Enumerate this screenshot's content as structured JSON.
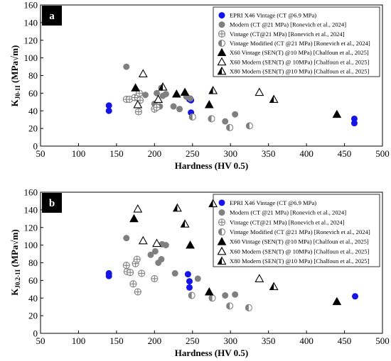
{
  "chart_data": [
    {
      "type": "scatter",
      "panel_tag": "a",
      "xlabel": "Hardness (HV 0.5)",
      "ylabel": {
        "main": "K",
        "sub": "J0-1I",
        "suffix": "(MPa√m)"
      },
      "xlim": [
        50,
        500
      ],
      "ylim": [
        0,
        160
      ],
      "x_ticks": [
        50,
        100,
        150,
        200,
        250,
        300,
        350,
        400,
        450,
        500
      ],
      "y_ticks": [
        0,
        20,
        40,
        60,
        80,
        100,
        120,
        140,
        160
      ],
      "grid": false,
      "legend_position": "top-right",
      "series": [
        {
          "name": "EPRI X46 Vintage (CT @6.9 MPa)",
          "marker": "filled-circle",
          "color": "#1414e6",
          "points": [
            [
              140,
              46
            ],
            [
              140,
              40
            ],
            [
              246,
              53
            ],
            [
              248,
              52
            ],
            [
              248,
              38
            ],
            [
              463,
              31
            ],
            [
              463,
              26
            ]
          ]
        },
        {
          "name": "Modern (CT @21 MPa) [Ronevich et al., 2024]",
          "marker": "filled-circle",
          "color": "#808080",
          "points": [
            [
              163,
              90
            ],
            [
              188,
              58
            ],
            [
              200,
              48
            ],
            [
              203,
              60
            ],
            [
              207,
              45
            ],
            [
              209,
              66
            ],
            [
              211,
              57
            ],
            [
              215,
              59
            ],
            [
              225,
              45
            ],
            [
              233,
              42
            ],
            [
              242,
              56
            ],
            [
              247,
              54
            ],
            [
              293,
              28
            ],
            [
              306,
              36
            ]
          ]
        },
        {
          "name": "Vintage (CT@21 MPa) [Ronevich et al., 2024]",
          "marker": "crossed-circle",
          "color": "#808080",
          "points": [
            [
              163,
              53
            ],
            [
              167,
              53
            ],
            [
              174,
              55
            ],
            [
              178,
              55
            ],
            [
              179,
              39
            ],
            [
              180,
              60
            ],
            [
              181,
              52
            ],
            [
              200,
              42
            ],
            [
              203,
              44
            ]
          ]
        },
        {
          "name": "Vintage Modified (CT @21 MPa) [Ronevich et al., 2024]",
          "marker": "half-circle",
          "color": "#808080",
          "points": [
            [
              250,
              33
            ],
            [
              275,
              31
            ],
            [
              299,
              21
            ],
            [
              325,
              23
            ]
          ]
        },
        {
          "name": "X60 Vintage (SEN(T) @10 MPa) [Chalfoun et al., 2025]",
          "marker": "filled-triangle",
          "color": "#000000",
          "points": [
            [
              175,
              66
            ],
            [
              229,
              59
            ],
            [
              240,
              61
            ],
            [
              272,
              47
            ],
            [
              440,
              36
            ]
          ]
        },
        {
          "name": "X60 Modern (SEN(T) @ 10MPa) [Chalfoun et al., 2025]",
          "marker": "open-triangle",
          "color": "#000000",
          "points": [
            [
              178,
              47
            ],
            [
              185,
              82
            ],
            [
              205,
              53
            ],
            [
              338,
              61
            ]
          ]
        },
        {
          "name": "X80 Modern (SEN(T) @10 MPa) [Chalfoun et al., 2025]",
          "marker": "half-triangle",
          "color": "#000000",
          "points": [
            [
              211,
              67
            ],
            [
              277,
              63
            ],
            [
              357,
              53
            ]
          ]
        }
      ]
    },
    {
      "type": "scatter",
      "panel_tag": "b",
      "xlabel": "Hardness (HV 0.5)",
      "ylabel": {
        "main": "K",
        "sub": "J0.2-1I",
        "suffix": "(MPa√m)"
      },
      "xlim": [
        50,
        500
      ],
      "ylim": [
        0,
        160
      ],
      "x_ticks": [
        50,
        100,
        150,
        200,
        250,
        300,
        350,
        400,
        450,
        500
      ],
      "y_ticks": [
        0,
        20,
        40,
        60,
        80,
        100,
        120,
        140,
        160
      ],
      "grid": false,
      "legend_position": "top-right",
      "series": [
        {
          "name": "EPRI X46 Vintage (CT @6.9 MPa)",
          "marker": "filled-circle",
          "color": "#1414e6",
          "points": [
            [
              140,
              68
            ],
            [
              140,
              65
            ],
            [
              244,
              67
            ],
            [
              246,
              59
            ],
            [
              246,
              52
            ],
            [
              464,
              42
            ]
          ]
        },
        {
          "name": "Modern (CT @21 MPa) [Ronevich et al., 2024]",
          "marker": "filled-circle",
          "color": "#808080",
          "points": [
            [
              163,
              108
            ],
            [
              195,
              89
            ],
            [
              201,
              93
            ],
            [
              205,
              80
            ],
            [
              209,
              84
            ],
            [
              210,
              101
            ],
            [
              215,
              100
            ],
            [
              227,
              68
            ],
            [
              257,
              62
            ],
            [
              293,
              43
            ],
            [
              306,
              44
            ]
          ]
        },
        {
          "name": "Vintage (CT@21 MPa) [Ronevich et al., 2024]",
          "marker": "crossed-circle",
          "color": "#808080",
          "points": [
            [
              163,
              77
            ],
            [
              164,
              70
            ],
            [
              168,
              69
            ],
            [
              172,
              56
            ],
            [
              175,
              79
            ],
            [
              177,
              84
            ],
            [
              178,
              47
            ],
            [
              183,
              68
            ],
            [
              200,
              62
            ]
          ]
        },
        {
          "name": "Vintage Modified (CT @21 MPa) [Ronevich et al., 2024]",
          "marker": "half-circle",
          "color": "#808080",
          "points": [
            [
              249,
              43
            ],
            [
              276,
              40
            ],
            [
              299,
              31
            ],
            [
              324,
              29
            ]
          ]
        },
        {
          "name": "X60 Vintage (SEN(T) @10 MPa) [Chalfoun et al., 2025]",
          "marker": "filled-triangle",
          "color": "#000000",
          "points": [
            [
              173,
              130
            ],
            [
              247,
              100
            ],
            [
              272,
              47
            ],
            [
              440,
              36
            ]
          ]
        },
        {
          "name": "X60 Modern (SEN(T) @ 10MPa) [Chalfoun et al., 2025]",
          "marker": "open-triangle",
          "color": "#000000",
          "points": [
            [
              178,
              141
            ],
            [
              185,
              105
            ],
            [
              203,
              102
            ],
            [
              338,
              62
            ]
          ]
        },
        {
          "name": "X80 Modern (SEN(T) @10 MPa) [Chalfoun et al., 2025]",
          "marker": "half-triangle",
          "color": "#000000",
          "points": [
            [
              230,
              142
            ],
            [
              240,
              124
            ],
            [
              277,
              147
            ],
            [
              357,
              53
            ]
          ]
        }
      ]
    }
  ]
}
